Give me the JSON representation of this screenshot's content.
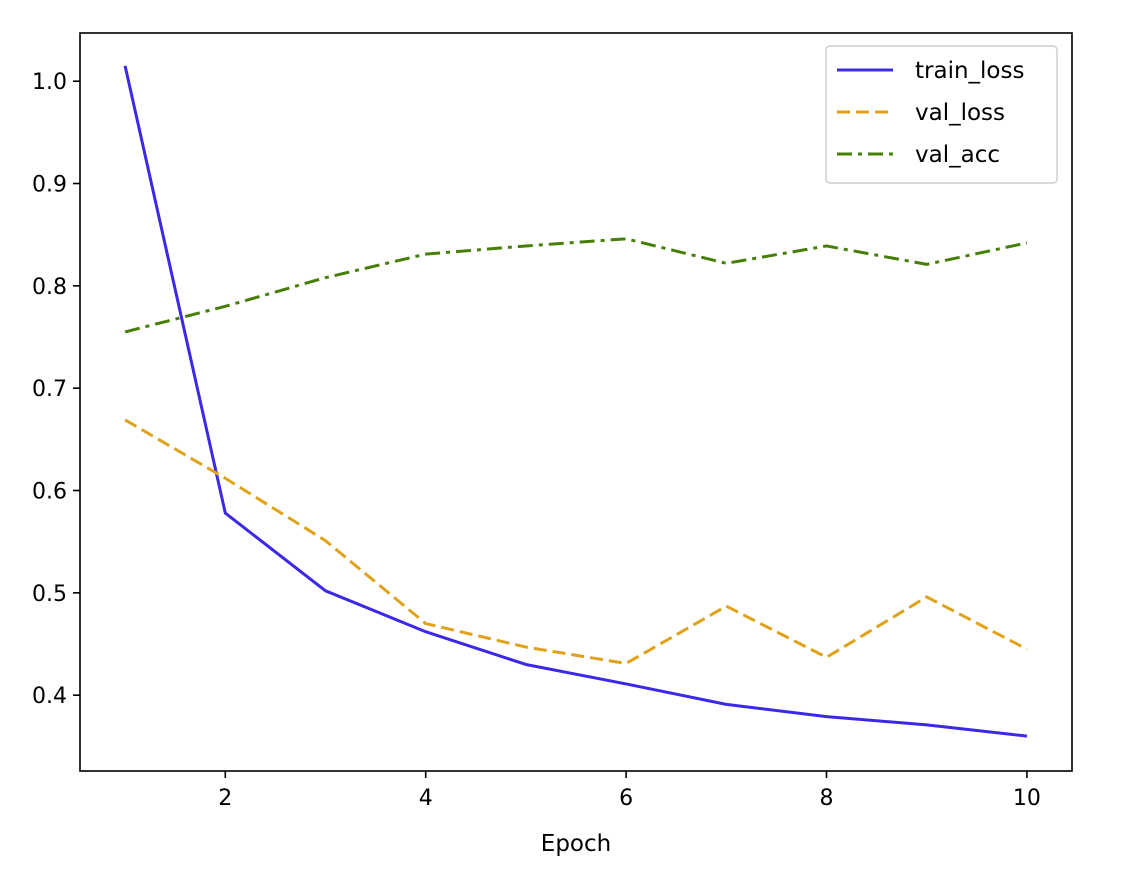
{
  "chart_data": {
    "type": "line",
    "title": "",
    "xlabel": "Epoch",
    "ylabel": "",
    "x": [
      1,
      2,
      3,
      4,
      5,
      6,
      7,
      8,
      9,
      10
    ],
    "xlim": [
      0.55,
      10.45
    ],
    "ylim": [
      0.3259,
      1.0471
    ],
    "xticks": [
      2,
      4,
      6,
      8,
      10
    ],
    "xtick_labels": [
      "2",
      "4",
      "6",
      "8",
      "10"
    ],
    "yticks": [
      0.4,
      0.5,
      0.6,
      0.7,
      0.8,
      0.9,
      1.0
    ],
    "ytick_labels": [
      "0.4",
      "0.5",
      "0.6",
      "0.7",
      "0.8",
      "0.9",
      "1.0"
    ],
    "grid": false,
    "legend_position": "top-right",
    "series": [
      {
        "name": "train_loss",
        "color": "#3b28e8",
        "style": "solid",
        "values": [
          1.015,
          0.578,
          0.502,
          0.462,
          0.43,
          0.411,
          0.391,
          0.379,
          0.371,
          0.36
        ]
      },
      {
        "name": "val_loss",
        "color": "#e0a21a",
        "style": "dashed",
        "values": [
          0.669,
          0.612,
          0.551,
          0.47,
          0.447,
          0.431,
          0.487,
          0.437,
          0.496,
          0.445
        ]
      },
      {
        "name": "val_acc",
        "color": "#467f07",
        "style": "dashdot",
        "values": [
          0.755,
          0.78,
          0.808,
          0.831,
          0.839,
          0.846,
          0.822,
          0.839,
          0.821,
          0.842
        ]
      }
    ]
  }
}
